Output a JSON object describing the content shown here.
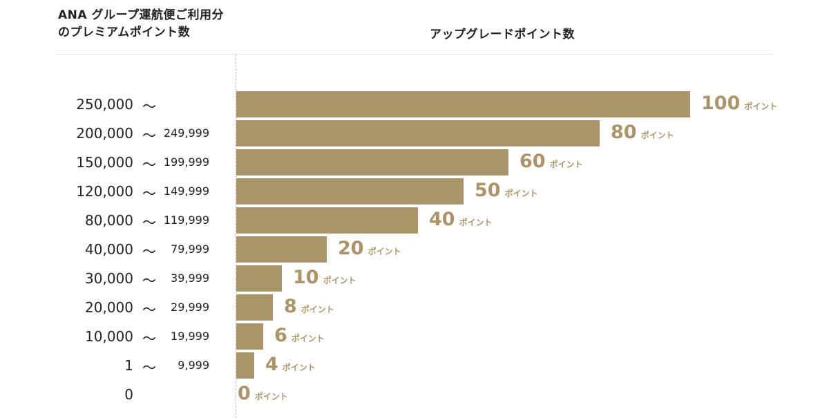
{
  "header": {
    "left_line1": "ANA グループ運航便ご利用分",
    "left_line2": "のプレミアムポイント数",
    "right": "アップグレードポイント数"
  },
  "chart_data": {
    "type": "bar",
    "orientation": "horizontal",
    "xlabel": "アップグレードポイント数",
    "ylabel": "ANA グループ運航便ご利用分のプレミアムポイント数",
    "unit": "ポイント",
    "xlim": [
      0,
      100
    ],
    "grid": false,
    "legend": "none",
    "bar_color": "#ac946a",
    "rows": [
      {
        "min": "250,000",
        "sep": "〜",
        "max": "",
        "value": 100
      },
      {
        "min": "200,000",
        "sep": "〜",
        "max": "249,999",
        "value": 80
      },
      {
        "min": "150,000",
        "sep": "〜",
        "max": "199,999",
        "value": 60
      },
      {
        "min": "120,000",
        "sep": "〜",
        "max": "149,999",
        "value": 50
      },
      {
        "min": "80,000",
        "sep": "〜",
        "max": "119,999",
        "value": 40
      },
      {
        "min": "40,000",
        "sep": "〜",
        "max": "79,999",
        "value": 20
      },
      {
        "min": "30,000",
        "sep": "〜",
        "max": "39,999",
        "value": 10
      },
      {
        "min": "20,000",
        "sep": "〜",
        "max": "29,999",
        "value": 8
      },
      {
        "min": "10,000",
        "sep": "〜",
        "max": "19,999",
        "value": 6
      },
      {
        "min": "1",
        "sep": "〜",
        "max": "9,999",
        "value": 4
      },
      {
        "min": "0",
        "sep": "",
        "max": "",
        "value": 0
      }
    ]
  }
}
